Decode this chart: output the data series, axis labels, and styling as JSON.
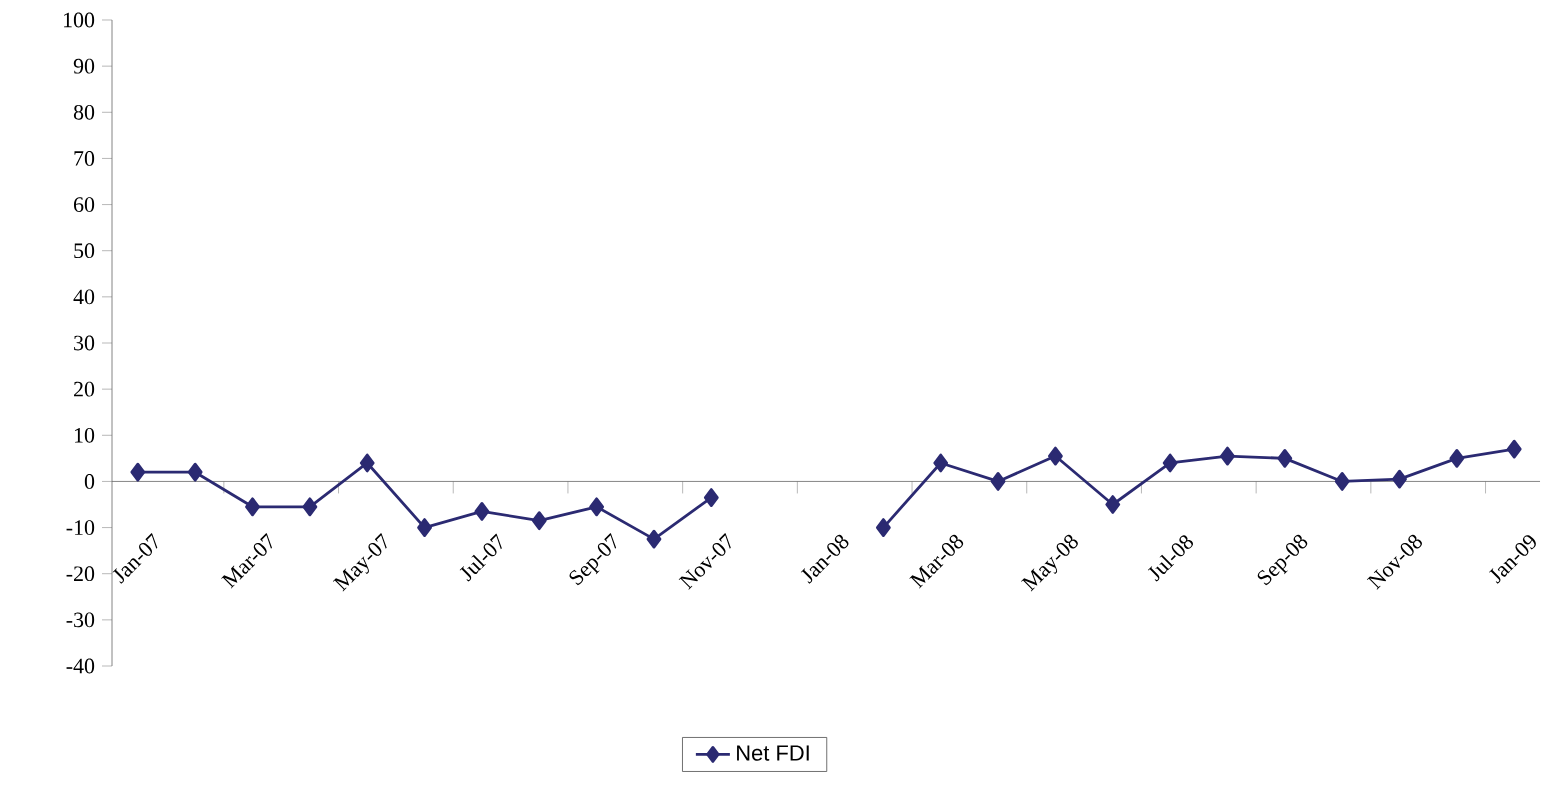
{
  "chart_data": {
    "type": "line",
    "categories": [
      "Jan-07",
      null,
      "Mar-07",
      null,
      "May-07",
      null,
      "Jul-07",
      null,
      "Sep-07",
      null,
      "Nov-07",
      null,
      "Jan-08",
      null,
      "Mar-08",
      null,
      "May-08",
      null,
      "Jul-08",
      null,
      "Sep-08",
      null,
      "Nov-08",
      null,
      "Jan-09"
    ],
    "series": [
      {
        "name": "Net FDI",
        "color": "#2b2a72",
        "values": [
          2,
          2,
          -5.5,
          -5.5,
          4,
          -10,
          -6.5,
          -8.5,
          -5.5,
          -12.5,
          -3.5,
          null,
          null,
          -10,
          4,
          0,
          5.5,
          -5,
          4,
          5.5,
          5,
          0,
          0.5,
          5,
          7
        ]
      }
    ],
    "ylim": [
      -40,
      100
    ],
    "yticks": [
      -40,
      -30,
      -20,
      -10,
      0,
      10,
      20,
      30,
      40,
      50,
      60,
      70,
      80,
      90,
      100
    ],
    "marker": "diamond",
    "line_style": "solid",
    "legend": "bottom",
    "grid": false
  }
}
